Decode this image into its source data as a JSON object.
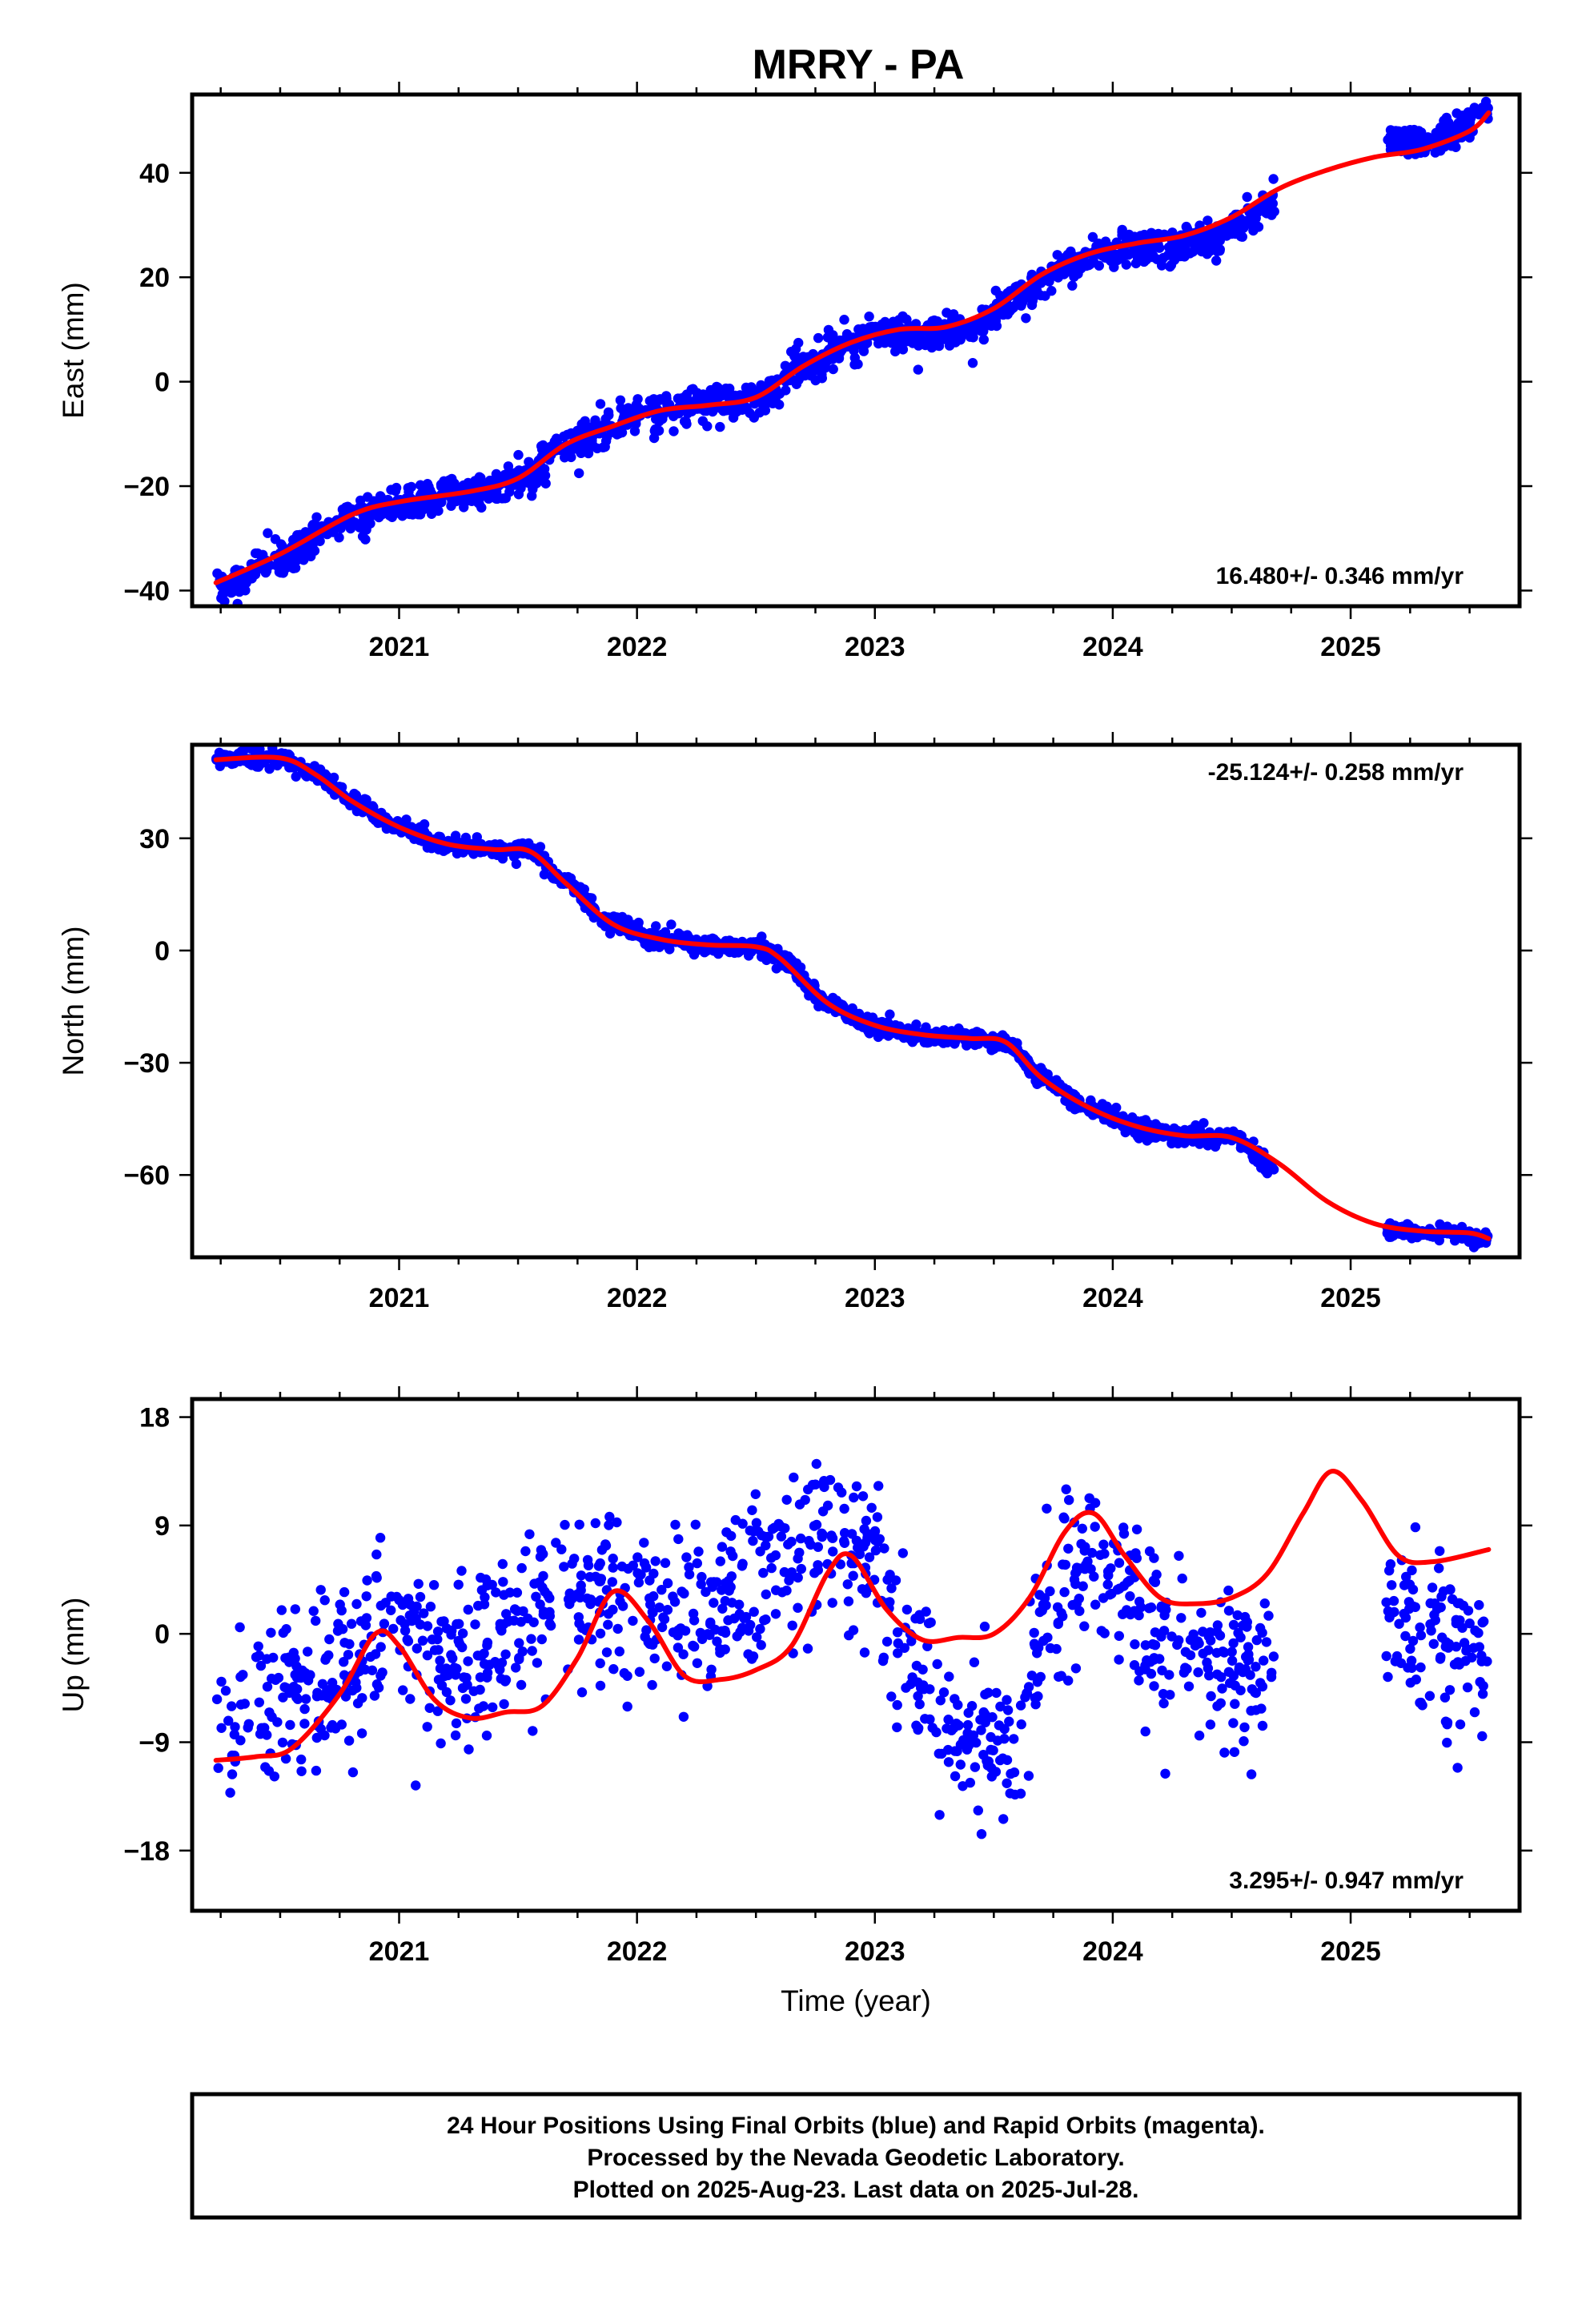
{
  "title": "MRRY - PA",
  "colors": {
    "final_orbits": "#0000ff",
    "fit_line": "#ff0000"
  },
  "footer": {
    "line1": "24 Hour Positions Using Final Orbits (blue) and Rapid Orbits (magenta).",
    "line2": "Processed by the Nevada Geodetic Laboratory.",
    "line3": "Plotted on 2025-Aug-23. Last data on 2025-Jul-28."
  },
  "chart_data": [
    {
      "id": "east",
      "type": "scatter",
      "title": "",
      "ylabel": "East (mm)",
      "xlabel": "",
      "xlim": [
        2020.13,
        2025.71
      ],
      "ylim": [
        -43,
        55
      ],
      "yticks": [
        -40,
        -20,
        0,
        20,
        40
      ],
      "xticks": [
        2021,
        2022,
        2023,
        2024,
        2025
      ],
      "rate_label": "16.480+/- 0.346 mm/yr",
      "rate_position": "bottom-right",
      "grid": false,
      "series": [
        {
          "kind": "points",
          "color": "#0000ff",
          "segments": [
            {
              "x_range": [
                2020.23,
                2024.68
              ],
              "knots": [
                [
                  2020.23,
                  -39.5
                ],
                [
                  2020.5,
                  -34
                ],
                [
                  2020.8,
                  -26
                ],
                [
                  2021.0,
                  -23
                ],
                [
                  2021.3,
                  -21
                ],
                [
                  2021.5,
                  -19
                ],
                [
                  2021.7,
                  -12
                ],
                [
                  2021.9,
                  -8.5
                ],
                [
                  2022.0,
                  -6
                ],
                [
                  2022.3,
                  -4.5
                ],
                [
                  2022.5,
                  -3.5
                ],
                [
                  2022.7,
                  3
                ],
                [
                  2022.9,
                  7
                ],
                [
                  2023.0,
                  9.5
                ],
                [
                  2023.2,
                  9
                ],
                [
                  2023.4,
                  10
                ],
                [
                  2023.6,
                  16
                ],
                [
                  2023.8,
                  22
                ],
                [
                  2024.0,
                  25
                ],
                [
                  2024.2,
                  26
                ],
                [
                  2024.4,
                  27
                ],
                [
                  2024.6,
                  32
                ],
                [
                  2024.68,
                  35.5
                ]
              ],
              "noise": 1.6,
              "count": 1500
            },
            {
              "x_range": [
                2025.15,
                2025.58
              ],
              "knots": [
                [
                  2025.15,
                  46.5
                ],
                [
                  2025.35,
                  46.5
                ],
                [
                  2025.5,
                  49.5
                ],
                [
                  2025.58,
                  52
                ]
              ],
              "noise": 1.3,
              "count": 150
            }
          ]
        },
        {
          "kind": "line",
          "color": "#ff0000",
          "x": [
            2020.23,
            2020.5,
            2020.8,
            2021.0,
            2021.3,
            2021.5,
            2021.7,
            2021.9,
            2022.1,
            2022.3,
            2022.5,
            2022.7,
            2022.9,
            2023.1,
            2023.3,
            2023.5,
            2023.7,
            2023.9,
            2024.1,
            2024.3,
            2024.5,
            2024.7,
            2024.9,
            2025.1,
            2025.3,
            2025.5,
            2025.58
          ],
          "y": [
            -38.5,
            -33,
            -25.5,
            -23,
            -21,
            -18.5,
            -12,
            -8.5,
            -5.5,
            -4.5,
            -3,
            3,
            7.5,
            10,
            10.5,
            14,
            20.5,
            24.5,
            26.5,
            28,
            31.5,
            37,
            40.5,
            43,
            44.5,
            48,
            51.5
          ]
        }
      ]
    },
    {
      "id": "north",
      "type": "scatter",
      "title": "",
      "ylabel": "North (mm)",
      "xlabel": "",
      "xlim": [
        2020.13,
        2025.71
      ],
      "ylim": [
        -82,
        55
      ],
      "yticks": [
        -60,
        -30,
        0,
        30
      ],
      "xticks": [
        2021,
        2022,
        2023,
        2024,
        2025
      ],
      "rate_label": "-25.124+/- 0.258 mm/yr",
      "rate_position": "top-right",
      "grid": false,
      "series": [
        {
          "kind": "points",
          "color": "#0000ff",
          "segments": [
            {
              "x_range": [
                2020.23,
                2024.68
              ],
              "knots": [
                [
                  2020.23,
                  51
                ],
                [
                  2020.5,
                  51.5
                ],
                [
                  2020.65,
                  47
                ],
                [
                  2020.8,
                  40
                ],
                [
                  2021.0,
                  33
                ],
                [
                  2021.2,
                  28
                ],
                [
                  2021.4,
                  27
                ],
                [
                  2021.55,
                  26.5
                ],
                [
                  2021.7,
                  18
                ],
                [
                  2021.9,
                  7
                ],
                [
                  2022.1,
                  3
                ],
                [
                  2022.3,
                  1.5
                ],
                [
                  2022.5,
                  1
                ],
                [
                  2022.6,
                  -2
                ],
                [
                  2022.8,
                  -14
                ],
                [
                  2023.0,
                  -20.5
                ],
                [
                  2023.2,
                  -23
                ],
                [
                  2023.4,
                  -23.5
                ],
                [
                  2023.55,
                  -24.5
                ],
                [
                  2023.7,
                  -34
                ],
                [
                  2023.9,
                  -42
                ],
                [
                  2024.1,
                  -47
                ],
                [
                  2024.3,
                  -49.5
                ],
                [
                  2024.5,
                  -50
                ],
                [
                  2024.68,
                  -58
                ]
              ],
              "noise": 1.1,
              "count": 1500
            },
            {
              "x_range": [
                2025.15,
                2025.58
              ],
              "knots": [
                [
                  2025.15,
                  -75
                ],
                [
                  2025.4,
                  -75.5
                ],
                [
                  2025.58,
                  -77
                ]
              ],
              "noise": 0.9,
              "count": 150
            }
          ]
        },
        {
          "kind": "line",
          "color": "#ff0000",
          "x": [
            2020.23,
            2020.5,
            2020.65,
            2020.8,
            2021.0,
            2021.2,
            2021.4,
            2021.55,
            2021.7,
            2021.9,
            2022.1,
            2022.3,
            2022.5,
            2022.6,
            2022.8,
            2023.0,
            2023.2,
            2023.4,
            2023.55,
            2023.7,
            2023.9,
            2024.1,
            2024.3,
            2024.5,
            2024.7,
            2024.9,
            2025.1,
            2025.3,
            2025.5,
            2025.58
          ],
          "y": [
            51,
            51.5,
            47,
            40,
            33,
            28.5,
            27,
            26.5,
            18,
            7,
            3,
            1.5,
            1,
            -2,
            -14,
            -20,
            -22.5,
            -23.5,
            -24.5,
            -34,
            -42,
            -47,
            -49.5,
            -50,
            -57,
            -67,
            -73,
            -75,
            -75.5,
            -77
          ]
        }
      ]
    },
    {
      "id": "up",
      "type": "scatter",
      "title": "",
      "ylabel": "Up (mm)",
      "xlabel": "Time (year)",
      "xlim": [
        2020.13,
        2025.71
      ],
      "ylim": [
        -23,
        19.5
      ],
      "yticks": [
        -18,
        -9,
        0,
        9,
        18
      ],
      "xticks": [
        2021,
        2022,
        2023,
        2024,
        2025
      ],
      "rate_label": "3.295+/- 0.947 mm/yr",
      "rate_position": "bottom-right",
      "grid": false,
      "series": [
        {
          "kind": "points",
          "color": "#0000ff",
          "segments": [
            {
              "x_range": [
                2020.23,
                2024.68
              ],
              "knots": [
                [
                  2020.23,
                  -8.5
                ],
                [
                  2020.4,
                  -6
                ],
                [
                  2020.6,
                  -4.5
                ],
                [
                  2020.8,
                  -3
                ],
                [
                  2020.95,
                  0
                ],
                [
                  2021.2,
                  -2
                ],
                [
                  2021.4,
                  -0.5
                ],
                [
                  2021.6,
                  1.5
                ],
                [
                  2021.8,
                  3
                ],
                [
                  2022.0,
                  3
                ],
                [
                  2022.2,
                  1
                ],
                [
                  2022.4,
                  2.5
                ],
                [
                  2022.6,
                  5
                ],
                [
                  2022.8,
                  9
                ],
                [
                  2023.0,
                  6
                ],
                [
                  2023.1,
                  0
                ],
                [
                  2023.3,
                  -8
                ],
                [
                  2023.5,
                  -9
                ],
                [
                  2023.6,
                  -12
                ],
                [
                  2023.7,
                  0
                ],
                [
                  2023.85,
                  5.5
                ],
                [
                  2024.0,
                  4
                ],
                [
                  2024.2,
                  -1
                ],
                [
                  2024.4,
                  -3
                ],
                [
                  2024.6,
                  -3
                ],
                [
                  2024.68,
                  0
                ]
              ],
              "noise": 3.4,
              "count": 1050
            },
            {
              "x_range": [
                2025.15,
                2025.58
              ],
              "knots": [
                [
                  2025.15,
                  1
                ],
                [
                  2025.35,
                  0
                ],
                [
                  2025.58,
                  -1.5
                ]
              ],
              "noise": 3.2,
              "count": 110
            }
          ]
        },
        {
          "kind": "line",
          "color": "#ff0000",
          "x": [
            2020.23,
            2020.4,
            2020.55,
            2020.75,
            2020.9,
            2021.0,
            2021.15,
            2021.3,
            2021.45,
            2021.6,
            2021.75,
            2021.9,
            2022.05,
            2022.2,
            2022.35,
            2022.5,
            2022.65,
            2022.8,
            2022.9,
            2023.05,
            2023.2,
            2023.35,
            2023.5,
            2023.65,
            2023.8,
            2023.92,
            2024.05,
            2024.2,
            2024.35,
            2024.5,
            2024.65,
            2024.8,
            2024.92,
            2025.05,
            2025.2,
            2025.35,
            2025.58
          ],
          "y": [
            -10.5,
            -10.2,
            -9.5,
            -5,
            0,
            -1,
            -5.5,
            -7,
            -6.5,
            -6,
            -2,
            3.5,
            1,
            -3.5,
            -3.8,
            -3,
            -1,
            5,
            6.5,
            2,
            -0.5,
            -0.3,
            0,
            3,
            8.5,
            10,
            6.5,
            3,
            2.5,
            3,
            5,
            10,
            13.5,
            11,
            6.5,
            6,
            7
          ]
        }
      ]
    }
  ]
}
